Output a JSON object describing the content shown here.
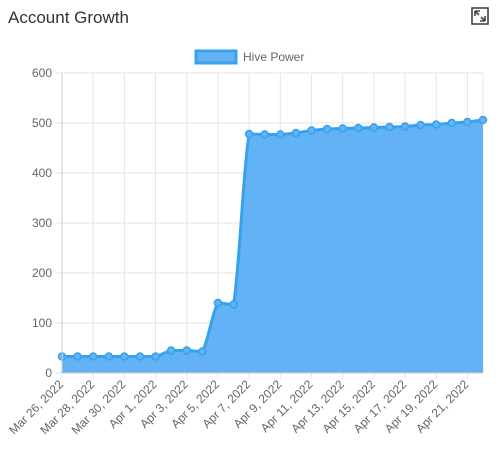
{
  "widget": {
    "title": "Account Growth",
    "expand_icon": "expand-icon"
  },
  "colors": {
    "line": "#36a2eb",
    "fill": "#62b2f5",
    "grid": "#e5e5e5",
    "tick_text": "#666666"
  },
  "chart_data": {
    "type": "area",
    "title": "",
    "xlabel": "",
    "ylabel": "",
    "ylim": [
      0,
      600
    ],
    "yticks": [
      0,
      100,
      200,
      300,
      400,
      500,
      600
    ],
    "grid": true,
    "legend_position": "top",
    "x": [
      "Mar 26, 2022",
      "Mar 27, 2022",
      "Mar 28, 2022",
      "Mar 29, 2022",
      "Mar 30, 2022",
      "Mar 31, 2022",
      "Apr 1, 2022",
      "Apr 2, 2022",
      "Apr 3, 2022",
      "Apr 4, 2022",
      "Apr 5, 2022",
      "Apr 6, 2022",
      "Apr 7, 2022",
      "Apr 8, 2022",
      "Apr 9, 2022",
      "Apr 10, 2022",
      "Apr 11, 2022",
      "Apr 12, 2022",
      "Apr 13, 2022",
      "Apr 14, 2022",
      "Apr 15, 2022",
      "Apr 16, 2022",
      "Apr 17, 2022",
      "Apr 18, 2022",
      "Apr 19, 2022",
      "Apr 20, 2022",
      "Apr 21, 2022",
      "Apr 22, 2022"
    ],
    "x_tick_labels": [
      "Mar 26, 2022",
      "Mar 28, 2022",
      "Mar 30, 2022",
      "Apr 1, 2022",
      "Apr 3, 2022",
      "Apr 5, 2022",
      "Apr 7, 2022",
      "Apr 9, 2022",
      "Apr 11, 2022",
      "Apr 13, 2022",
      "Apr 15, 2022",
      "Apr 17, 2022",
      "Apr 19, 2022",
      "Apr 21, 2022"
    ],
    "series": [
      {
        "name": "Hive Power",
        "values": [
          33,
          33,
          33,
          33,
          33,
          33,
          33,
          45,
          45,
          43,
          140,
          137,
          478,
          477,
          477,
          480,
          485,
          488,
          489,
          490,
          491,
          492,
          493,
          496,
          497,
          500,
          502,
          506
        ]
      }
    ]
  }
}
